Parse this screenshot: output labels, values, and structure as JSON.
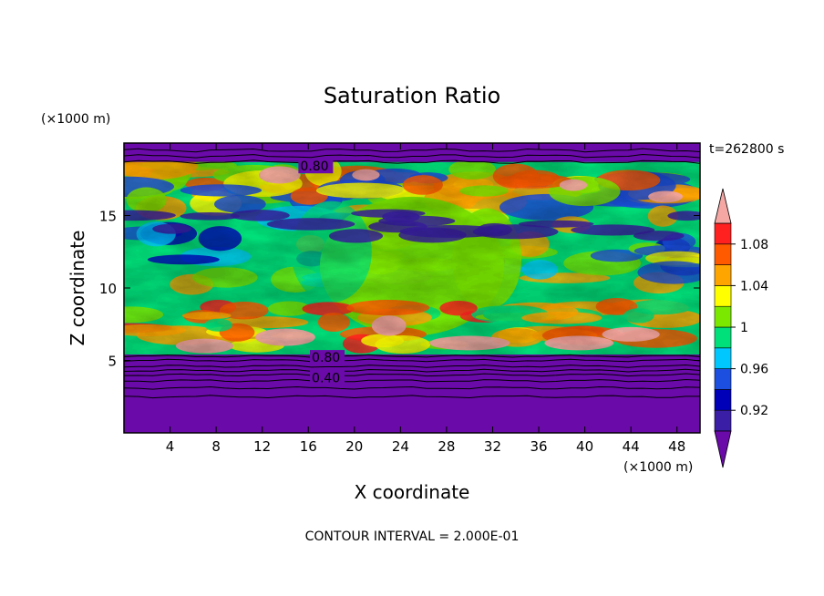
{
  "chart_data": {
    "type": "heatmap",
    "title": "Saturation Ratio",
    "xlabel": "X coordinate",
    "ylabel": "Z coordinate",
    "x_unit": "(×1000 m)",
    "y_unit": "(×1000 m)",
    "time_label": "t=262800 s",
    "footer": "CONTOUR INTERVAL = 2.000E-01",
    "xlim": [
      0,
      50
    ],
    "ylim": [
      0,
      20
    ],
    "x_ticks": [
      4,
      8,
      12,
      16,
      20,
      24,
      28,
      32,
      36,
      40,
      44,
      48
    ],
    "y_ticks": [
      5,
      10,
      15
    ],
    "contour_labels": [
      {
        "text": "0.80",
        "x": 15.3,
        "y": 18.1
      },
      {
        "text": "0.80",
        "x": 16.3,
        "y": 4.9
      },
      {
        "text": "0.40",
        "x": 16.3,
        "y": 3.5
      }
    ],
    "colorbar": {
      "levels": [
        0.9,
        0.92,
        0.94,
        0.96,
        0.98,
        1.0,
        1.02,
        1.04,
        1.06,
        1.08,
        1.1
      ],
      "tick_labels": [
        "0.92",
        "0.96",
        "1",
        "1.04",
        "1.08"
      ],
      "colors": [
        "#3a1fa6",
        "#0000b8",
        "#1c4fe0",
        "#00c8ff",
        "#00e07a",
        "#7be800",
        "#ffff00",
        "#ffa500",
        "#ff5a00",
        "#ff2020"
      ],
      "under_color": "#6a0aa8",
      "over_color": "#f4a7a3"
    },
    "colors": {
      "background_dry": "#6a0aa8",
      "mid_green": "#7be800",
      "teal_green": "#00e07a"
    }
  }
}
